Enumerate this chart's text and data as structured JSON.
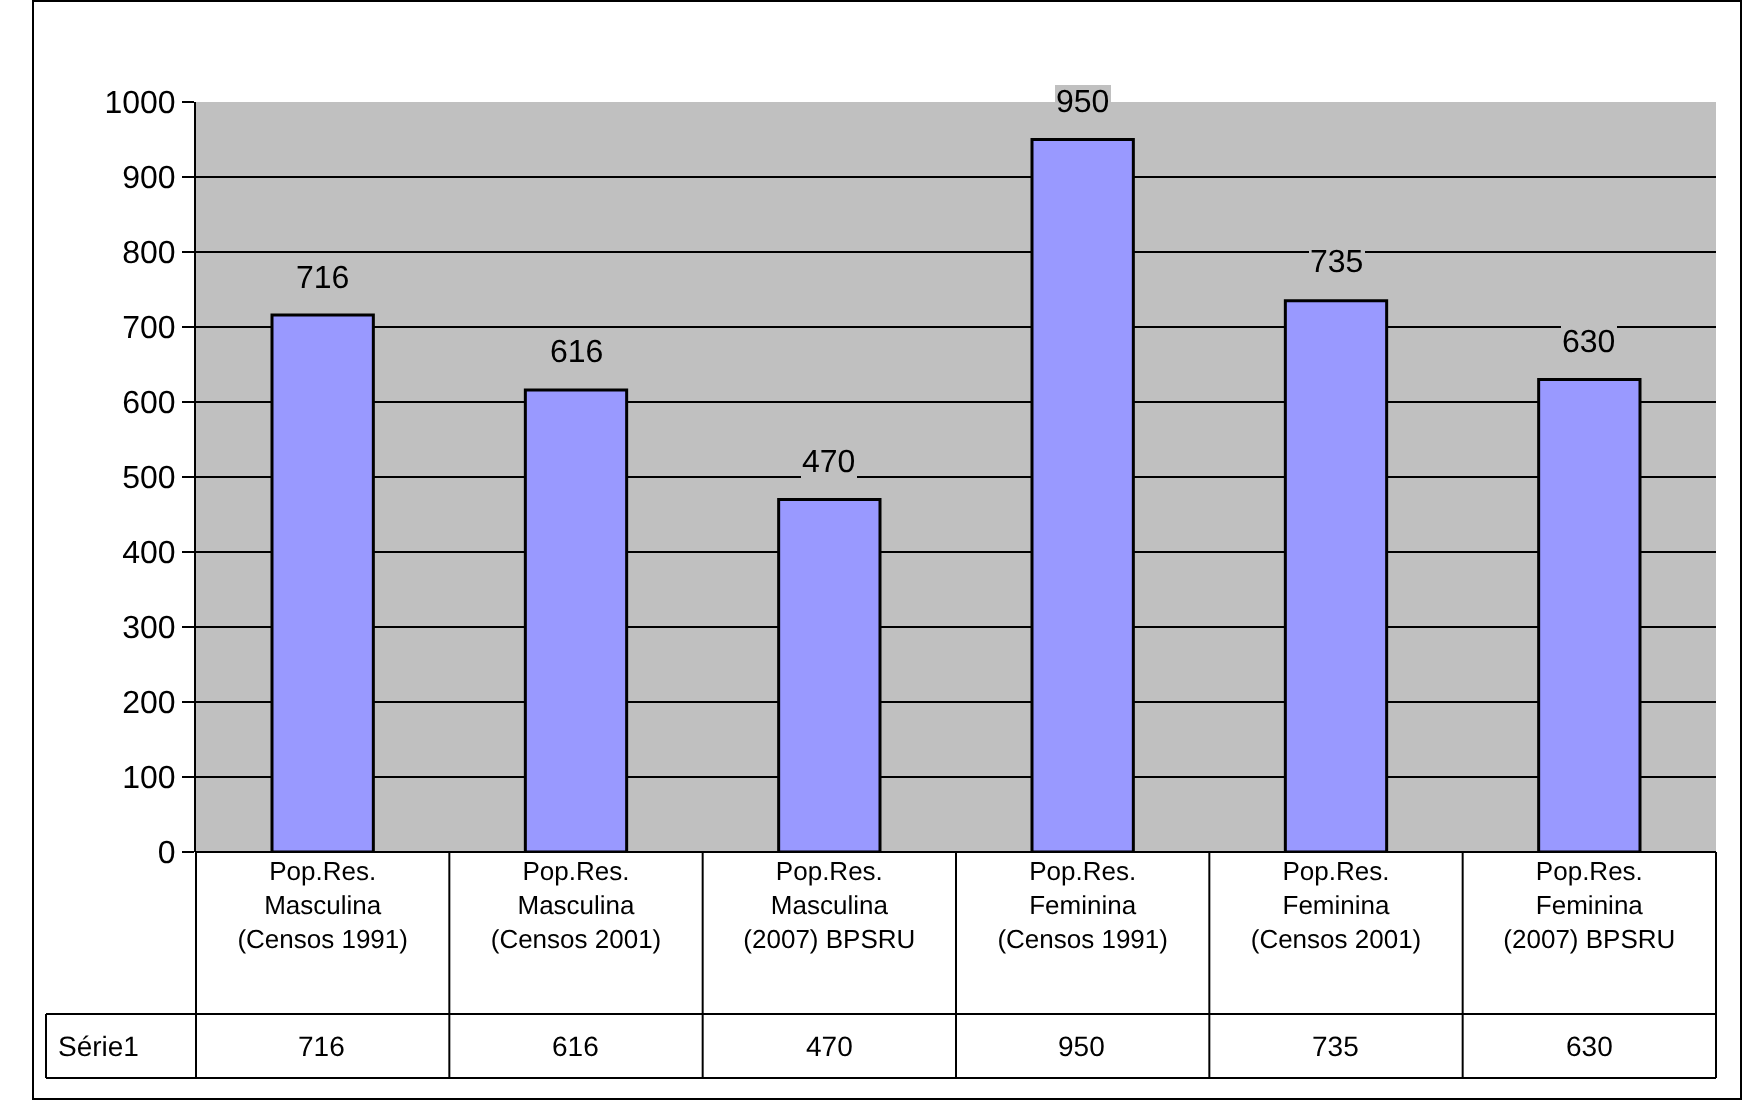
{
  "chart_data": {
    "type": "bar",
    "categories": [
      "Pop.Res. Masculina (Censos 1991)",
      "Pop.Res. Masculina (Censos 2001)",
      "Pop.Res. Masculina (2007) BPSRU",
      "Pop.Res. Feminina (Censos 1991)",
      "Pop.Res. Feminina (Censos 2001)",
      "Pop.Res. Feminina (2007) BPSRU"
    ],
    "series": [
      {
        "name": "Série1",
        "color": "#9999ff",
        "values": [
          716,
          616,
          470,
          950,
          735,
          630
        ]
      }
    ],
    "annotations": [
      "716",
      "616",
      "470",
      "950",
      "735",
      "630"
    ],
    "ylim": [
      0,
      1000
    ],
    "yticks": [
      0,
      100,
      200,
      300,
      400,
      500,
      600,
      700,
      800,
      900,
      1000
    ],
    "grid": "y",
    "legend": "bottom left",
    "data_labels": true
  }
}
